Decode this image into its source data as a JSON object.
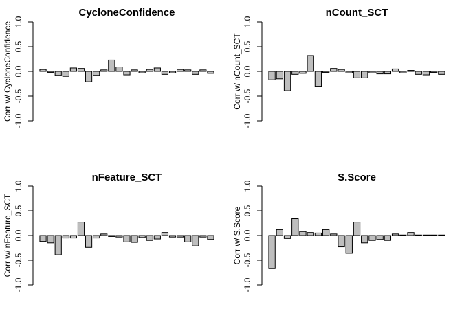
{
  "colors": {
    "bar_fill": "#bebebe",
    "bar_stroke": "#000000",
    "axis": "#000000",
    "background": "#ffffff"
  },
  "chart_data": [
    {
      "type": "bar",
      "title": "CycloneConfidence",
      "ylabel": "Corr w/ CycloneConfidence",
      "ylim": [
        -1,
        1
      ],
      "yticks": [
        "-1.0",
        "-0.5",
        "0.0",
        "0.5",
        "1.0"
      ],
      "grid": false,
      "values": [
        0.04,
        -0.02,
        -0.08,
        -0.1,
        0.07,
        0.06,
        -0.21,
        -0.08,
        0.03,
        0.23,
        0.09,
        -0.07,
        0.03,
        -0.03,
        0.04,
        0.07,
        -0.06,
        -0.03,
        0.04,
        0.03,
        -0.06,
        0.03,
        -0.04
      ]
    },
    {
      "type": "bar",
      "title": "nCount_SCT",
      "ylabel": "Corr w/ nCount_SCT",
      "ylim": [
        -1,
        1
      ],
      "yticks": [
        "-1.0",
        "-0.5",
        "0.0",
        "0.5",
        "1.0"
      ],
      "grid": false,
      "values": [
        -0.17,
        -0.15,
        -0.39,
        -0.06,
        -0.04,
        0.32,
        -0.3,
        -0.02,
        0.06,
        0.04,
        -0.03,
        -0.13,
        -0.13,
        -0.03,
        -0.05,
        -0.05,
        0.05,
        -0.03,
        0.02,
        -0.06,
        -0.07,
        -0.02,
        -0.06
      ]
    },
    {
      "type": "bar",
      "title": "nFeature_SCT",
      "ylabel": "Corr w/ nFeature_SCT",
      "ylim": [
        -1,
        1
      ],
      "yticks": [
        "-1.0",
        "-0.5",
        "0.0",
        "0.5",
        "1.0"
      ],
      "grid": false,
      "values": [
        -0.12,
        -0.15,
        -0.39,
        -0.05,
        -0.05,
        0.27,
        -0.24,
        -0.05,
        0.03,
        -0.02,
        -0.03,
        -0.13,
        -0.14,
        -0.04,
        -0.1,
        -0.07,
        0.06,
        -0.03,
        -0.03,
        -0.13,
        -0.21,
        -0.03,
        -0.08
      ]
    },
    {
      "type": "bar",
      "title": "S.Score",
      "ylabel": "Corr w/ S.Score",
      "ylim": [
        -1,
        1
      ],
      "yticks": [
        "-1.0",
        "-0.5",
        "0.0",
        "0.5",
        "1.0"
      ],
      "grid": false,
      "values": [
        -0.67,
        0.12,
        -0.06,
        0.34,
        0.08,
        0.06,
        0.05,
        0.12,
        0.03,
        -0.23,
        -0.36,
        0.27,
        -0.15,
        -0.1,
        -0.08,
        -0.1,
        0.03,
        0.01,
        0.06,
        0.01,
        0.01,
        0.01,
        0.01
      ]
    }
  ]
}
